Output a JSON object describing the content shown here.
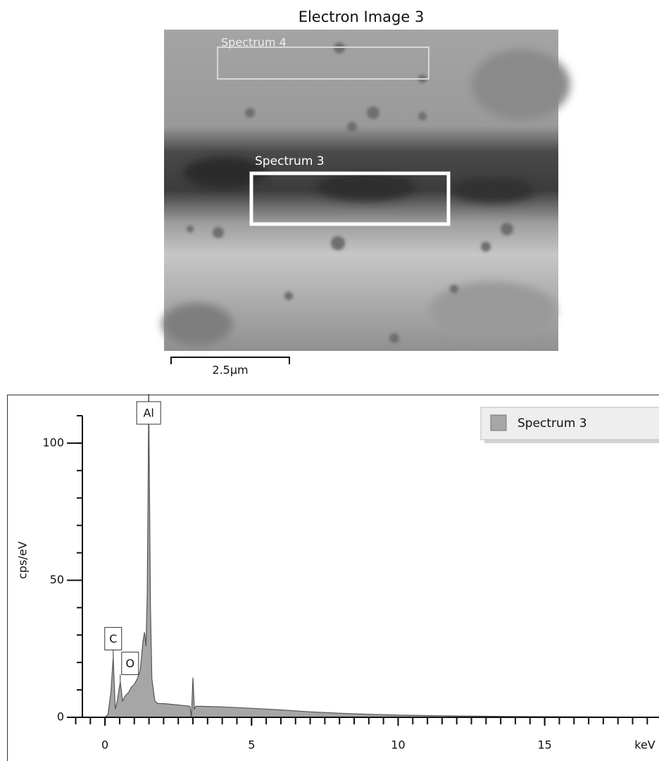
{
  "image": {
    "title": "Electron Image 3",
    "regions": [
      {
        "label": "Spectrum 4"
      },
      {
        "label": "Spectrum 3"
      }
    ],
    "scale_bar": "2.5µm"
  },
  "chart_data": {
    "type": "area",
    "ylabel": "cps/eV",
    "xlabel": "keV",
    "xlim": [
      -1.3,
      18.9
    ],
    "xticks": [
      0,
      5,
      10,
      15
    ],
    "xminor": 0.5,
    "ylim": [
      0,
      110
    ],
    "yticks": [
      0,
      50,
      100
    ],
    "yminor": 10,
    "legend": "top-right",
    "x": [
      0,
      0.1,
      0.2,
      0.28,
      0.35,
      0.42,
      0.52,
      0.6,
      0.7,
      0.8,
      0.9,
      1.0,
      1.1,
      1.2,
      1.3,
      1.35,
      1.4,
      1.44,
      1.47,
      1.49,
      1.52,
      1.55,
      1.6,
      1.7,
      1.8,
      2.0,
      2.5,
      2.9,
      2.95,
      3.0,
      3.05,
      3.1,
      3.3,
      4.0,
      5.0,
      6.0,
      7.0,
      8.0,
      9.0,
      10.0,
      12.0,
      14.0,
      16.0,
      18.0
    ],
    "series": [
      {
        "name": "Spectrum 3",
        "color": "#a6a6a6",
        "values": [
          0,
          1,
          9,
          22,
          3,
          6,
          13,
          6,
          8,
          9,
          11,
          12,
          14,
          17,
          28,
          31,
          26,
          45,
          80,
          118,
          80,
          40,
          14,
          6,
          5,
          5,
          4.5,
          4,
          0,
          14.5,
          3,
          4,
          4,
          3.8,
          3.3,
          2.7,
          2,
          1.5,
          1.1,
          0.8,
          0.5,
          0.3,
          0.2,
          0.1
        ]
      }
    ],
    "peak_labels": [
      {
        "label": "C",
        "x": 0.28
      },
      {
        "label": "O",
        "x": 0.52
      },
      {
        "label": "Al",
        "x": 1.49
      }
    ]
  }
}
